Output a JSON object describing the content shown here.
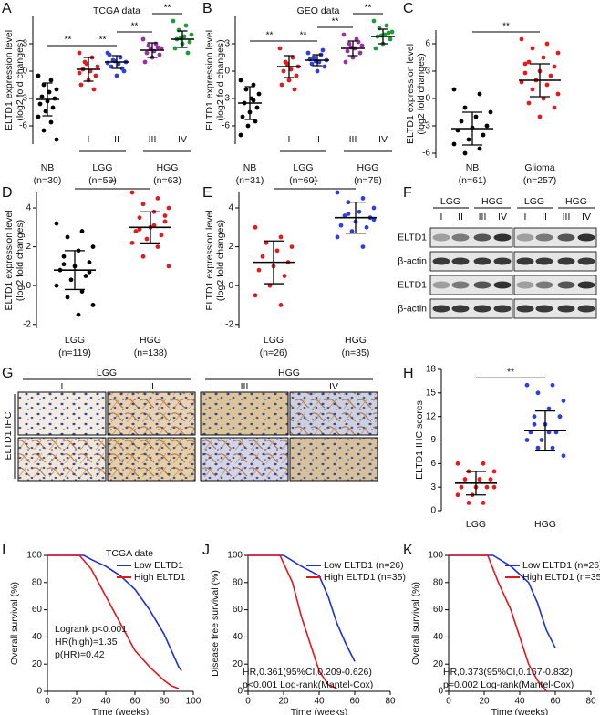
{
  "chart_data": [
    {
      "type": "dot",
      "panel": "A",
      "title": "TCGA data",
      "ylabel": [
        "ELTD1 expression level",
        "(log2 fold changes)"
      ],
      "ylim": [
        -8,
        6
      ],
      "yticks": [
        -6,
        -3,
        0,
        3
      ],
      "groups": [
        {
          "label": "NB",
          "n": "(n=30)",
          "series": [
            {
              "color": "#000000",
              "mean": -3.1,
              "sd": 1.8,
              "values": [
                -0.5,
                -1,
                -1.5,
                -2,
                -2.3,
                -2.8,
                -3,
                -3.3,
                -3.6,
                -4,
                -4.4,
                -5,
                -5.6,
                -6.5,
                -7.5
              ]
            }
          ]
        },
        {
          "label": "LGG",
          "n": "(n=59)",
          "series": [
            {
              "name": "I",
              "color": "#e41a1c",
              "mean": 0.2,
              "sd": 1.3,
              "values": [
                2,
                1.5,
                1,
                0.5,
                0,
                0.2,
                -0.5,
                -1,
                -1.5,
                -2,
                0.8,
                -0.2
              ]
            },
            {
              "name": "II",
              "color": "#2f3fd8",
              "mean": 1,
              "sd": 0.7,
              "values": [
                2,
                1.5,
                1.2,
                1,
                0.8,
                0.5,
                0,
                -0.5,
                1.8,
                0.3,
                1.1,
                0.9
              ]
            }
          ]
        },
        {
          "label": "HGG",
          "n": "(n=63)",
          "series": [
            {
              "name": "III",
              "color": "#9b2fa8",
              "mean": 2.3,
              "sd": 0.8,
              "values": [
                3.5,
                3,
                2.8,
                2.5,
                2.2,
                2,
                1.8,
                1.5,
                1,
                2.6,
                2.4
              ]
            },
            {
              "name": "IV",
              "color": "#1e9b3a",
              "mean": 3.5,
              "sd": 0.9,
              "values": [
                5.5,
                5,
                4.5,
                4,
                3.8,
                3.5,
                3.2,
                3,
                2.5,
                2,
                3.6
              ]
            }
          ]
        }
      ],
      "significance": [
        "**",
        "**",
        "**",
        "**"
      ]
    },
    {
      "type": "dot",
      "panel": "B",
      "title": "GEO data",
      "ylabel": [
        "ELTD1 expression level",
        "(log2 fold changes)"
      ],
      "ylim": [
        -8,
        6
      ],
      "yticks": [
        -6,
        -3,
        0,
        3
      ],
      "groups": [
        {
          "label": "NB",
          "n": "(n=31)",
          "series": [
            {
              "color": "#000000",
              "mean": -3.5,
              "sd": 1.8,
              "values": [
                -1,
                -1.5,
                -2,
                -2.5,
                -3,
                -3.5,
                -4,
                -4.5,
                -5,
                -5.5,
                -6,
                -7,
                -3.2
              ]
            }
          ]
        },
        {
          "label": "LGG",
          "n": "(n=60)",
          "series": [
            {
              "name": "I",
              "color": "#e41a1c",
              "mean": 0.5,
              "sd": 1.2,
              "values": [
                2.5,
                1.5,
                1,
                0.5,
                0.2,
                0,
                -0.5,
                -1,
                -1.5,
                -2,
                0.8
              ]
            },
            {
              "name": "II",
              "color": "#2f3fd8",
              "mean": 1.2,
              "sd": 0.6,
              "values": [
                2,
                1.8,
                1.5,
                1.2,
                1,
                0.8,
                0.5,
                0,
                1.3,
                2.3,
                1.1
              ]
            }
          ]
        },
        {
          "label": "HGG",
          "n": "(n=75)",
          "series": [
            {
              "name": "III",
              "color": "#9b2fa8",
              "mean": 2.5,
              "sd": 0.8,
              "values": [
                4,
                3.5,
                3,
                2.8,
                2.5,
                2.2,
                2,
                1.5,
                1,
                3.2,
                2.6
              ]
            },
            {
              "name": "IV",
              "color": "#1e9b3a",
              "mean": 3.8,
              "sd": 0.8,
              "values": [
                5.5,
                5,
                4.7,
                4.3,
                4,
                3.8,
                3.5,
                3,
                2.5,
                4.2,
                3.9
              ]
            }
          ]
        }
      ],
      "significance": [
        "**",
        "**",
        "**",
        "**"
      ]
    },
    {
      "type": "dot",
      "panel": "C",
      "ylabel": [
        "ELTD1 expression level",
        "(log2 fold changes)"
      ],
      "ylim": [
        -6.5,
        7.5
      ],
      "yticks": [
        -6,
        -3,
        0,
        3,
        6
      ],
      "groups": [
        {
          "label": "NB",
          "n": "(n=61)",
          "series": [
            {
              "color": "#000000",
              "mean": -3.3,
              "sd": 1.8,
              "values": [
                1,
                0.5,
                -1,
                -1.5,
                -2,
                -2.5,
                -3,
                -3.2,
                -3.5,
                -4,
                -4.5,
                -5,
                -5.5,
                -6
              ]
            }
          ]
        },
        {
          "label": "Glioma",
          "n": "(n=257)",
          "series": [
            {
              "color": "#e41a1c",
              "mean": 2,
              "sd": 1.8,
              "values": [
                6.5,
                6,
                5.5,
                5,
                4.5,
                4,
                3.5,
                3,
                2.8,
                2.5,
                2,
                1.8,
                1.5,
                1,
                0.5,
                0,
                -0.5,
                -1,
                -2,
                3.8
              ]
            }
          ]
        }
      ],
      "significance": [
        "**"
      ]
    },
    {
      "type": "dot",
      "panel": "D",
      "ylabel": [
        "ELTD1 expression level",
        "(log2 fold changes)"
      ],
      "ylim": [
        -2.2,
        4.8
      ],
      "yticks": [
        -2,
        0,
        2,
        4
      ],
      "groups": [
        {
          "label": "LGG",
          "n": "(n=119)",
          "series": [
            {
              "color": "#000000",
              "mean": 0.8,
              "sd": 1,
              "values": [
                3.2,
                2.8,
                2.5,
                2,
                1.8,
                1.5,
                1.2,
                1,
                0.8,
                0.5,
                0.3,
                0,
                -0.3,
                -0.6,
                -1,
                -1.5,
                1.1,
                0.7
              ]
            }
          ]
        },
        {
          "label": "HGG",
          "n": "(n=138)",
          "series": [
            {
              "color": "#e41a1c",
              "mean": 3,
              "sd": 0.8,
              "values": [
                4.8,
                4.5,
                4.2,
                4,
                3.8,
                3.5,
                3.3,
                3,
                2.8,
                2.6,
                2.4,
                2.2,
                2,
                1.5,
                1,
                3.1,
                2.9,
                3.6
              ]
            }
          ]
        }
      ],
      "significance": [
        "**"
      ]
    },
    {
      "type": "dot",
      "panel": "E",
      "ylabel": [
        "ELTD1 expression level",
        "(log2 fold changes)"
      ],
      "ylim": [
        -2.2,
        4.8
      ],
      "yticks": [
        -2,
        0,
        2,
        4
      ],
      "groups": [
        {
          "label": "LGG",
          "n": "(n=26)",
          "series": [
            {
              "color": "#e41a1c",
              "mean": 1.2,
              "sd": 1.1,
              "values": [
                3,
                2.5,
                2.2,
                2,
                1.8,
                1.5,
                1.2,
                1,
                0.8,
                0.5,
                0,
                -0.5,
                -1
              ]
            }
          ]
        },
        {
          "label": "HGG",
          "n": "(n=35)",
          "series": [
            {
              "color": "#2f3fd8",
              "mean": 3.5,
              "sd": 0.8,
              "values": [
                4.8,
                4.5,
                4.3,
                4,
                3.8,
                3.6,
                3.5,
                3.3,
                3.1,
                3,
                2.8,
                2.5,
                2,
                3.7,
                3.4
              ]
            }
          ]
        }
      ],
      "significance": [
        "**"
      ]
    },
    {
      "type": "dot",
      "panel": "H",
      "ylabel": [
        "ELTD1 IHC scores"
      ],
      "ylim": [
        0,
        18
      ],
      "yticks": [
        0,
        3,
        6,
        9,
        12,
        15,
        18
      ],
      "groups": [
        {
          "label": "LGG",
          "series": [
            {
              "color": "#e41a1c",
              "mean": 3.5,
              "sd": 1.5,
              "values": [
                6,
                6,
                5,
                5,
                4,
                4,
                4,
                3,
                3,
                3,
                2,
                2,
                1,
                1,
                3,
                4
              ]
            }
          ]
        },
        {
          "label": "HGG",
          "series": [
            {
              "color": "#2f3fd8",
              "mean": 10.2,
              "sd": 2.5,
              "values": [
                16,
                16,
                15,
                14,
                13,
                12,
                12,
                11,
                10,
                10,
                9,
                9,
                8,
                8,
                7,
                10,
                11,
                12
              ]
            }
          ]
        }
      ],
      "significance": [
        "**"
      ]
    },
    {
      "type": "survival",
      "panel": "I",
      "title": "TCGA date",
      "ylabel": "Overall survival (%)",
      "xlabel": "Time (weeks)",
      "xlim": [
        0,
        100
      ],
      "xticks": [
        0,
        20,
        40,
        60,
        80,
        100
      ],
      "ylim": [
        0,
        100
      ],
      "yticks": [
        0,
        20,
        40,
        60,
        80,
        100
      ],
      "series": [
        {
          "name": "Low ELTD1",
          "color": "#1f2fd6",
          "x": [
            0,
            25,
            30,
            40,
            50,
            60,
            70,
            80,
            85,
            90,
            92
          ],
          "y": [
            100,
            100,
            97,
            92,
            85,
            75,
            60,
            42,
            30,
            18,
            15
          ]
        },
        {
          "name": "High ELTD1",
          "color": "#e8141c",
          "x": [
            0,
            22,
            30,
            40,
            50,
            60,
            70,
            80,
            85,
            90
          ],
          "y": [
            100,
            100,
            90,
            70,
            50,
            30,
            18,
            8,
            4,
            2
          ]
        }
      ],
      "annotations": [
        "Logrank p<0.001",
        "HR(high)=1.35",
        "p(HR)=0.42"
      ]
    },
    {
      "type": "survival",
      "panel": "J",
      "ylabel": "Disease free survival (%)",
      "xlabel": "Time (weeks)",
      "xlim": [
        0,
        80
      ],
      "xticks": [
        0,
        20,
        40,
        60,
        80
      ],
      "ylim": [
        0,
        100
      ],
      "yticks": [
        0,
        20,
        40,
        60,
        80,
        100
      ],
      "series": [
        {
          "name": "Low ELTD1 (n=26)",
          "color": "#1f2fd6",
          "x": [
            0,
            20,
            30,
            40,
            45,
            50,
            55,
            60
          ],
          "y": [
            100,
            100,
            92,
            85,
            70,
            50,
            35,
            22
          ]
        },
        {
          "name": "High ELTD1 (n=35)",
          "color": "#e8141c",
          "x": [
            0,
            18,
            25,
            30,
            35,
            40,
            45,
            50
          ],
          "y": [
            100,
            100,
            80,
            55,
            35,
            15,
            5,
            2
          ]
        }
      ],
      "annotations": [
        "HR,0.361(95%CI,0.209-0.626)",
        "p<0.001 Log-rank(Mantel-Cox)"
      ]
    },
    {
      "type": "survival",
      "panel": "K",
      "ylabel": "Overall survival (%)",
      "xlabel": "Time (weeks)",
      "xlim": [
        0,
        80
      ],
      "xticks": [
        0,
        20,
        40,
        60,
        80
      ],
      "ylim": [
        0,
        100
      ],
      "yticks": [
        0,
        20,
        40,
        60,
        80,
        100
      ],
      "series": [
        {
          "name": "Low ELTD1 (n=26)",
          "color": "#1f2fd6",
          "x": [
            0,
            25,
            35,
            45,
            50,
            55,
            60
          ],
          "y": [
            100,
            100,
            92,
            80,
            65,
            45,
            32
          ]
        },
        {
          "name": "High ELTD1 (n=35)",
          "color": "#e8141c",
          "x": [
            0,
            22,
            28,
            35,
            40,
            45,
            50,
            55
          ],
          "y": [
            100,
            100,
            80,
            60,
            40,
            20,
            8,
            0
          ]
        }
      ],
      "annotations": [
        "HR,0.373(95%CI,0.167-0.832)",
        "p=0.002 Log-rank(Mantel-Cox)"
      ]
    }
  ],
  "blot": {
    "panel": "F",
    "groups": [
      "LGG",
      "HGG"
    ],
    "lanes": [
      "I",
      "II",
      "III",
      "IV"
    ],
    "rows": [
      "ELTD1",
      "β-actin",
      "ELTD1",
      "β-actin"
    ]
  },
  "ihc": {
    "panel": "G",
    "groups": [
      "LGG",
      "HGG"
    ],
    "grades": [
      "I",
      "II",
      "III",
      "IV"
    ],
    "row_label": "ELTD1 IHC"
  }
}
